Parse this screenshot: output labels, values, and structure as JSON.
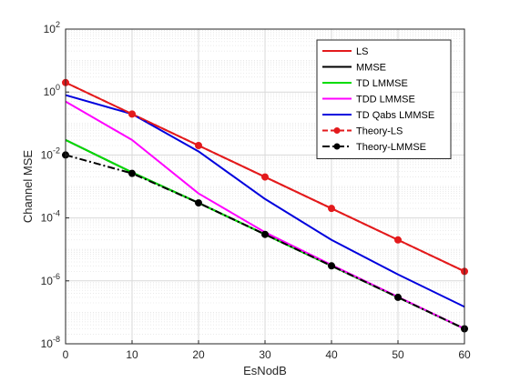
{
  "chart_data": {
    "type": "line",
    "xlabel": "EsNodB",
    "ylabel": "Channel MSE",
    "yscale": "log",
    "xlim": [
      0,
      60
    ],
    "ylim": [
      1e-08,
      100
    ],
    "grid": true,
    "legend_position": "top-right",
    "x_ticks": [
      "0",
      "10",
      "20",
      "30",
      "40",
      "50",
      "60"
    ],
    "y_ticks": [
      {
        "base": "10",
        "exp": "-8"
      },
      {
        "base": "10",
        "exp": "-6"
      },
      {
        "base": "10",
        "exp": "-4"
      },
      {
        "base": "10",
        "exp": "-2"
      },
      {
        "base": "10",
        "exp": "0"
      },
      {
        "base": "10",
        "exp": "2"
      }
    ],
    "series": [
      {
        "name": "LS",
        "color": "#e31a1c",
        "style": "solid",
        "marker": false,
        "x": [
          0,
          10,
          20,
          30,
          40,
          50,
          60
        ],
        "y": [
          2.0,
          0.2,
          0.02,
          0.002,
          0.0002,
          2e-05,
          2e-06
        ]
      },
      {
        "name": "MMSE",
        "color": "#000000",
        "style": "solid",
        "marker": false,
        "x": [
          0,
          10,
          20,
          30,
          40,
          50,
          60
        ],
        "y": [
          0.03,
          0.0028,
          0.0003,
          3e-05,
          3e-06,
          3e-07,
          3e-08
        ]
      },
      {
        "name": "TD LMMSE",
        "color": "#00dd00",
        "style": "solid",
        "marker": false,
        "x": [
          0,
          10,
          20,
          30,
          40,
          50,
          60
        ],
        "y": [
          0.03,
          0.0028,
          0.0003,
          3e-05,
          3e-06,
          3e-07,
          3e-08
        ]
      },
      {
        "name": "TDD LMMSE",
        "color": "#ff00ff",
        "style": "solid",
        "marker": false,
        "x": [
          0,
          10,
          20,
          30,
          40,
          50,
          60
        ],
        "y": [
          0.5,
          0.03,
          0.0006,
          3.5e-05,
          3.2e-06,
          3.1e-07,
          3e-08
        ]
      },
      {
        "name": "TD Qabs LMMSE",
        "color": "#0000dd",
        "style": "solid",
        "marker": false,
        "x": [
          0,
          10,
          20,
          30,
          40,
          50,
          60
        ],
        "y": [
          0.8,
          0.2,
          0.013,
          0.0004,
          2e-05,
          1.6e-06,
          1.5e-07
        ]
      },
      {
        "name": "Theory-LS",
        "color": "#e31a1c",
        "style": "dashed",
        "marker": true,
        "x": [
          0,
          10,
          20,
          30,
          40,
          50,
          60
        ],
        "y": [
          2.0,
          0.2,
          0.02,
          0.002,
          0.0002,
          2e-05,
          2e-06
        ]
      },
      {
        "name": "Theory-LMMSE",
        "color": "#000000",
        "style": "dashdot",
        "marker": true,
        "x": [
          0,
          10,
          20,
          30,
          40,
          50,
          60
        ],
        "y": [
          0.01,
          0.0026,
          0.0003,
          3e-05,
          3e-06,
          3e-07,
          3e-08
        ]
      }
    ]
  }
}
